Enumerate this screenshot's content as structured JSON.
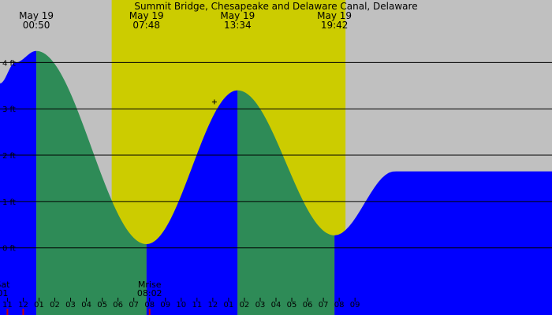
{
  "chart_data": {
    "type": "area",
    "title": "Summit Bridge, Chesapeake and Delaware Canal, Delaware",
    "colors": {
      "background": "#c0c0c0",
      "daylight": "#cccc00",
      "rising": "#0000ff",
      "falling": "#2e8b57",
      "grid": "#000000",
      "text": "#000000"
    },
    "x_range_hours": [
      -1.47,
      33.47
    ],
    "y_range_ft": [
      -1.45,
      5.35
    ],
    "daylight": [
      5.6,
      20.4
    ],
    "events": [
      {
        "date": "May 19",
        "time": "00:50",
        "hour": 0.83,
        "height": 4.25,
        "type": "high"
      },
      {
        "date": "May 19",
        "time": "07:48",
        "hour": 7.8,
        "height": 0.08,
        "type": "low"
      },
      {
        "date": "May 19",
        "time": "13:34",
        "hour": 13.57,
        "height": 3.4,
        "type": "high"
      },
      {
        "date": "May 19",
        "time": "19:42",
        "hour": 19.7,
        "height": 0.27,
        "type": "low"
      }
    ],
    "tide_points": [
      [
        -1.47,
        3.55
      ],
      [
        -0.5,
        4.0
      ],
      [
        0.83,
        4.25
      ],
      [
        7.8,
        0.08
      ],
      [
        13.57,
        3.4
      ],
      [
        19.7,
        0.27
      ],
      [
        23.5,
        1.65
      ]
    ],
    "plus_marker": {
      "hour": 12.1,
      "height": 3.15
    },
    "y_ticks": [
      {
        "value": 0,
        "label": "0 ft"
      },
      {
        "value": 1,
        "label": "1 ft"
      },
      {
        "value": 2,
        "label": "2 ft"
      },
      {
        "value": 3,
        "label": "3 ft"
      },
      {
        "value": 4,
        "label": "4 ft"
      }
    ],
    "x_ticks": [
      {
        "hour": -1,
        "label": "11"
      },
      {
        "hour": 0,
        "label": "12"
      },
      {
        "hour": 1,
        "label": "01"
      },
      {
        "hour": 2,
        "label": "02"
      },
      {
        "hour": 3,
        "label": "03"
      },
      {
        "hour": 4,
        "label": "04"
      },
      {
        "hour": 5,
        "label": "05"
      },
      {
        "hour": 6,
        "label": "06"
      },
      {
        "hour": 7,
        "label": "07"
      },
      {
        "hour": 8,
        "label": "08"
      },
      {
        "hour": 9,
        "label": "09"
      },
      {
        "hour": 10,
        "label": "10"
      },
      {
        "hour": 11,
        "label": "11"
      },
      {
        "hour": 12,
        "label": "12"
      },
      {
        "hour": 13,
        "label": "01"
      },
      {
        "hour": 14,
        "label": "02"
      },
      {
        "hour": 15,
        "label": "03"
      },
      {
        "hour": 16,
        "label": "04"
      },
      {
        "hour": 17,
        "label": "05"
      },
      {
        "hour": 18,
        "label": "06"
      },
      {
        "hour": 19,
        "label": "07"
      },
      {
        "hour": 20,
        "label": "08"
      },
      {
        "hour": 21,
        "label": "09"
      }
    ],
    "red_markers": [
      -1,
      0,
      8
    ],
    "moon_labels": [
      {
        "hour": -1.3,
        "line1": "Sat",
        "line2": "01"
      },
      {
        "hour": 8.0,
        "line1": "Mrise",
        "line2": "08:02"
      }
    ]
  }
}
